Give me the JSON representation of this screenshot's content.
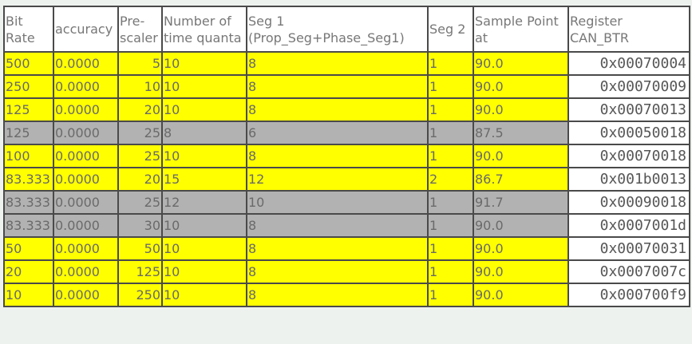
{
  "colors": {
    "highlight_row": "#ffff00",
    "alternate_row": "#b2b2b2",
    "register_cell": "#ffffff",
    "page_background": "#eef2ef"
  },
  "headers": [
    [
      "Bit",
      "Rate"
    ],
    [
      "accuracy"
    ],
    [
      "Pre-",
      "scaler"
    ],
    [
      "Number of",
      "time quanta"
    ],
    [
      "Seg 1",
      "(Prop_Seg+Phase_Seg1)"
    ],
    [
      "Seg 2"
    ],
    [
      "Sample Point",
      "at"
    ],
    [
      "Register",
      "CAN_BTR"
    ]
  ],
  "rows": [
    {
      "style": "yellow",
      "cells": [
        "500",
        "0.0000",
        "5",
        "10",
        "8",
        "1",
        "90.0",
        "0x00070004"
      ]
    },
    {
      "style": "yellow",
      "cells": [
        "250",
        "0.0000",
        "10",
        "10",
        "8",
        "1",
        "90.0",
        "0x00070009"
      ]
    },
    {
      "style": "yellow",
      "cells": [
        "125",
        "0.0000",
        "20",
        "10",
        "8",
        "1",
        "90.0",
        "0x00070013"
      ]
    },
    {
      "style": "gray",
      "cells": [
        "125",
        "0.0000",
        "25",
        "8",
        "6",
        "1",
        "87.5",
        "0x00050018"
      ]
    },
    {
      "style": "yellow",
      "cells": [
        "100",
        "0.0000",
        "25",
        "10",
        "8",
        "1",
        "90.0",
        "0x00070018"
      ]
    },
    {
      "style": "yellow",
      "cells": [
        "83.333",
        "0.0000",
        "20",
        "15",
        "12",
        "2",
        "86.7",
        "0x001b0013"
      ]
    },
    {
      "style": "gray",
      "cells": [
        "83.333",
        "0.0000",
        "25",
        "12",
        "10",
        "1",
        "91.7",
        "0x00090018"
      ]
    },
    {
      "style": "gray",
      "cells": [
        "83.333",
        "0.0000",
        "30",
        "10",
        "8",
        "1",
        "90.0",
        "0x0007001d"
      ]
    },
    {
      "style": "yellow",
      "cells": [
        "50",
        "0.0000",
        "50",
        "10",
        "8",
        "1",
        "90.0",
        "0x00070031"
      ]
    },
    {
      "style": "yellow",
      "cells": [
        "20",
        "0.0000",
        "125",
        "10",
        "8",
        "1",
        "90.0",
        "0x0007007c"
      ]
    },
    {
      "style": "yellow",
      "cells": [
        "10",
        "0.0000",
        "250",
        "10",
        "8",
        "1",
        "90.0",
        "0x000700f9"
      ]
    }
  ]
}
